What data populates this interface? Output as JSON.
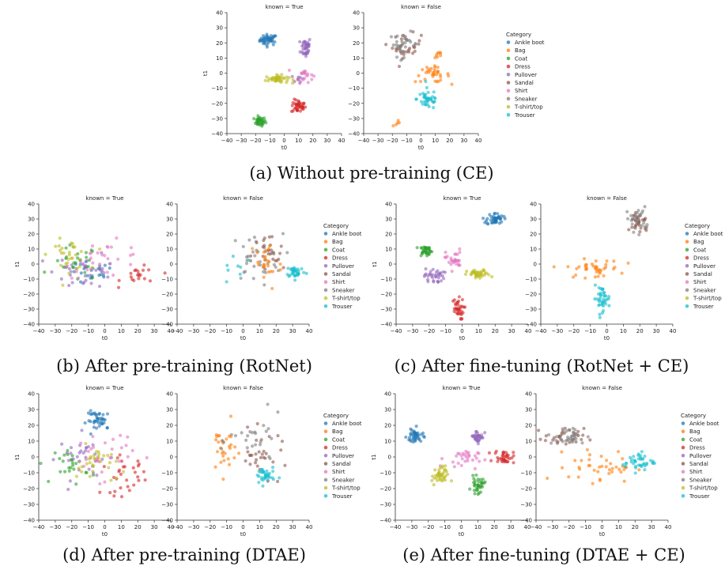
{
  "categories": [
    "Ankle boot",
    "Bag",
    "Coat",
    "Dress",
    "Pullover",
    "Sandal",
    "Shirt",
    "Sneaker",
    "T-shirt/top",
    "Trouser"
  ],
  "category_colors": [
    "#1f77b4",
    "#ff7f0e",
    "#2ca02c",
    "#d62728",
    "#9467bd",
    "#8c564b",
    "#e377c2",
    "#7f7f7f",
    "#bcbd22",
    "#17becf"
  ],
  "legend_title": "Category",
  "panel_titles": {
    "known_true": "known = True",
    "known_false": "known = False"
  },
  "axis_labels": {
    "x": "t0",
    "y": "t1"
  },
  "captions": {
    "a": "(a) Without pre-training (CE)",
    "b": "(b) After pre-training (RotNet)",
    "c": "(c) After fine-tuning (RotNet + CE)",
    "d": "(d) After pre-training (DTAE)",
    "e": "(e) After fine-tuning (DTAE + CE)"
  },
  "chart_data": [
    {
      "id": "a",
      "type": "scatter",
      "title": "",
      "xlabel": "t0",
      "ylabel": "t1",
      "xlim": [
        -40,
        40
      ],
      "ylim": [
        -40,
        40
      ],
      "xticks": [
        -40,
        -30,
        -20,
        -10,
        0,
        10,
        20,
        30,
        40
      ],
      "yticks": [
        -40,
        -30,
        -20,
        -10,
        0,
        10,
        20,
        30,
        40
      ],
      "legend": "right",
      "panels": {
        "known_true": [
          {
            "category": "Ankle boot",
            "cx": -11,
            "cy": 22,
            "sx": 3.0,
            "sy": 1.8,
            "n": 45
          },
          {
            "category": "Coat",
            "cx": -17,
            "cy": -32,
            "sx": 2.0,
            "sy": 1.5,
            "n": 35
          },
          {
            "category": "Dress",
            "cx": 10,
            "cy": -22,
            "sx": 2.5,
            "sy": 2.2,
            "n": 40
          },
          {
            "category": "Pullover",
            "cx": 15,
            "cy": 17,
            "sx": 1.8,
            "sy": 3.5,
            "n": 40
          },
          {
            "category": "Pullover",
            "cx": 10,
            "cy": -3,
            "sx": 2.5,
            "sy": 2.0,
            "n": 10
          },
          {
            "category": "Shirt",
            "cx": 14,
            "cy": -1,
            "sx": 3.0,
            "sy": 2.5,
            "n": 20
          },
          {
            "category": "T-shirt/top",
            "cx": -5,
            "cy": -4,
            "sx": 4.0,
            "sy": 1.3,
            "n": 45
          }
        ],
        "known_false": [
          {
            "category": "Sandal",
            "cx": -10,
            "cy": 18,
            "sx": 5.0,
            "sy": 4.0,
            "n": 30
          },
          {
            "category": "Sneaker",
            "cx": -12,
            "cy": 19,
            "sx": 5.0,
            "sy": 4.0,
            "n": 30
          },
          {
            "category": "Bag",
            "cx": 8,
            "cy": -1,
            "sx": 6.0,
            "sy": 2.5,
            "n": 35
          },
          {
            "category": "Bag",
            "cx": 12,
            "cy": 12,
            "sx": 1.5,
            "sy": 1.5,
            "n": 8
          },
          {
            "category": "Bag",
            "cx": -17,
            "cy": -33,
            "sx": 1.5,
            "sy": 3.0,
            "n": 5
          },
          {
            "category": "Trouser",
            "cx": 5,
            "cy": -17,
            "sx": 4.0,
            "sy": 3.5,
            "n": 40
          }
        ]
      }
    },
    {
      "id": "b",
      "type": "scatter",
      "title": "",
      "xlabel": "t0",
      "ylabel": "t1",
      "xlim": [
        -40,
        40
      ],
      "ylim": [
        -40,
        40
      ],
      "xticks": [
        -40,
        -30,
        -20,
        -10,
        0,
        10,
        20,
        30,
        40
      ],
      "yticks": [
        -40,
        -30,
        -20,
        -10,
        0,
        10,
        20,
        30,
        40
      ],
      "legend": "right",
      "panels": {
        "known_true": [
          {
            "category": "Ankle boot",
            "cx": -8,
            "cy": -6,
            "sx": 7,
            "sy": 4,
            "n": 25
          },
          {
            "category": "Coat",
            "cx": -18,
            "cy": 0,
            "sx": 7,
            "sy": 6,
            "n": 25
          },
          {
            "category": "Dress",
            "cx": 22,
            "cy": -8,
            "sx": 6,
            "sy": 3,
            "n": 20
          },
          {
            "category": "Pullover",
            "cx": -12,
            "cy": -4,
            "sx": 9,
            "sy": 6,
            "n": 30
          },
          {
            "category": "Shirt",
            "cx": 0,
            "cy": 3,
            "sx": 12,
            "sy": 6,
            "n": 30
          },
          {
            "category": "T-shirt/top",
            "cx": -22,
            "cy": 6,
            "sx": 6,
            "sy": 5,
            "n": 30
          }
        ],
        "known_false": [
          {
            "category": "Sneaker",
            "cx": 8,
            "cy": 4,
            "sx": 8,
            "sy": 8,
            "n": 35
          },
          {
            "category": "Sandal",
            "cx": 15,
            "cy": 5,
            "sx": 5,
            "sy": 8,
            "n": 25
          },
          {
            "category": "Bag",
            "cx": 14,
            "cy": 0,
            "sx": 5,
            "sy": 9,
            "n": 25
          },
          {
            "category": "Trouser",
            "cx": 32,
            "cy": -5,
            "sx": 3,
            "sy": 2,
            "n": 35
          },
          {
            "category": "Trouser",
            "cx": -4,
            "cy": -2,
            "sx": 5,
            "sy": 6,
            "n": 8
          }
        ]
      }
    },
    {
      "id": "c",
      "type": "scatter",
      "title": "",
      "xlabel": "t0",
      "ylabel": "t1",
      "xlim": [
        -40,
        40
      ],
      "ylim": [
        -40,
        40
      ],
      "xticks": [
        -40,
        -30,
        -20,
        -10,
        0,
        10,
        20,
        30,
        40
      ],
      "yticks": [
        -40,
        -30,
        -20,
        -10,
        0,
        10,
        20,
        30,
        40
      ],
      "legend": "right",
      "panels": {
        "known_true": [
          {
            "category": "Ankle boot",
            "cx": 20,
            "cy": 30,
            "sx": 2.5,
            "sy": 2.0,
            "n": 45
          },
          {
            "category": "Coat",
            "cx": -22,
            "cy": 9,
            "sx": 2.0,
            "sy": 1.8,
            "n": 35
          },
          {
            "category": "Dress",
            "cx": -3,
            "cy": -30,
            "sx": 2.0,
            "sy": 3.5,
            "n": 35
          },
          {
            "category": "Pullover",
            "cx": -17,
            "cy": -8,
            "sx": 3.0,
            "sy": 2.5,
            "n": 35
          },
          {
            "category": "Shirt",
            "cx": -5,
            "cy": 3,
            "sx": 2.5,
            "sy": 3.5,
            "n": 30
          },
          {
            "category": "T-shirt/top",
            "cx": 10,
            "cy": -7,
            "sx": 3.5,
            "sy": 1.5,
            "n": 40
          }
        ],
        "known_false": [
          {
            "category": "Sandal",
            "cx": 20,
            "cy": 28,
            "sx": 3.0,
            "sy": 4.0,
            "n": 30
          },
          {
            "category": "Sneaker",
            "cx": 18,
            "cy": 30,
            "sx": 3.0,
            "sy": 4.0,
            "n": 25
          },
          {
            "category": "Bag",
            "cx": -8,
            "cy": -3,
            "sx": 8.0,
            "sy": 3.0,
            "n": 40
          },
          {
            "category": "Trouser",
            "cx": -3,
            "cy": -23,
            "sx": 2.5,
            "sy": 4.0,
            "n": 40
          }
        ]
      }
    },
    {
      "id": "d",
      "type": "scatter",
      "title": "",
      "xlabel": "t0",
      "ylabel": "t1",
      "xlim": [
        -40,
        40
      ],
      "ylim": [
        -40,
        40
      ],
      "xticks": [
        -40,
        -30,
        -20,
        -10,
        0,
        10,
        20,
        30,
        40
      ],
      "yticks": [
        -40,
        -30,
        -20,
        -10,
        0,
        10,
        20,
        30,
        40
      ],
      "legend": "right",
      "panels": {
        "known_true": [
          {
            "category": "Ankle boot",
            "cx": -3,
            "cy": 23,
            "sx": 4,
            "sy": 3,
            "n": 40
          },
          {
            "category": "Coat",
            "cx": -20,
            "cy": -5,
            "sx": 5,
            "sy": 6,
            "n": 25
          },
          {
            "category": "Dress",
            "cx": 12,
            "cy": -12,
            "sx": 7,
            "sy": 6,
            "n": 30
          },
          {
            "category": "Pullover",
            "cx": -12,
            "cy": 0,
            "sx": 8,
            "sy": 7,
            "n": 30
          },
          {
            "category": "Shirt",
            "cx": -2,
            "cy": 2,
            "sx": 10,
            "sy": 8,
            "n": 30
          },
          {
            "category": "T-shirt/top",
            "cx": -5,
            "cy": -5,
            "sx": 6,
            "sy": 6,
            "n": 30
          }
        ],
        "known_false": [
          {
            "category": "Bag",
            "cx": -12,
            "cy": 5,
            "sx": 4,
            "sy": 8,
            "n": 30
          },
          {
            "category": "Sandal",
            "cx": 12,
            "cy": 2,
            "sx": 8,
            "sy": 7,
            "n": 30
          },
          {
            "category": "Sneaker",
            "cx": 8,
            "cy": 10,
            "sx": 8,
            "sy": 8,
            "n": 25
          },
          {
            "category": "Trouser",
            "cx": 13,
            "cy": -12,
            "sx": 3,
            "sy": 3,
            "n": 35
          }
        ]
      }
    },
    {
      "id": "e",
      "type": "scatter",
      "title": "",
      "xlabel": "t0",
      "ylabel": "t1",
      "xlim": [
        -40,
        40
      ],
      "ylim": [
        -40,
        40
      ],
      "xticks": [
        -40,
        -30,
        -20,
        -10,
        0,
        10,
        20,
        30,
        40
      ],
      "yticks": [
        -40,
        -30,
        -20,
        -10,
        0,
        10,
        20,
        30,
        40
      ],
      "legend": "right",
      "panels": {
        "known_true": [
          {
            "category": "Ankle boot",
            "cx": -28,
            "cy": 13,
            "sx": 2.5,
            "sy": 2.5,
            "n": 40
          },
          {
            "category": "Coat",
            "cx": 10,
            "cy": -18,
            "sx": 2.0,
            "sy": 2.5,
            "n": 35
          },
          {
            "category": "Dress",
            "cx": 26,
            "cy": 0,
            "sx": 3.0,
            "sy": 2.0,
            "n": 35
          },
          {
            "category": "Pullover",
            "cx": 10,
            "cy": 13,
            "sx": 2.0,
            "sy": 2.0,
            "n": 35
          },
          {
            "category": "Shirt",
            "cx": 0,
            "cy": -1,
            "sx": 5.0,
            "sy": 3.0,
            "n": 30
          },
          {
            "category": "T-shirt/top",
            "cx": -13,
            "cy": -12,
            "sx": 2.5,
            "sy": 3.0,
            "n": 40
          }
        ],
        "known_false": [
          {
            "category": "Sandal",
            "cx": -23,
            "cy": 12,
            "sx": 6,
            "sy": 3,
            "n": 30
          },
          {
            "category": "Sneaker",
            "cx": -21,
            "cy": 13,
            "sx": 6,
            "sy": 3,
            "n": 30
          },
          {
            "category": "Bag",
            "cx": 0,
            "cy": -6,
            "sx": 10,
            "sy": 5,
            "n": 40
          },
          {
            "category": "Trouser",
            "cx": 22,
            "cy": -3,
            "sx": 5,
            "sy": 3,
            "n": 40
          }
        ]
      }
    }
  ]
}
